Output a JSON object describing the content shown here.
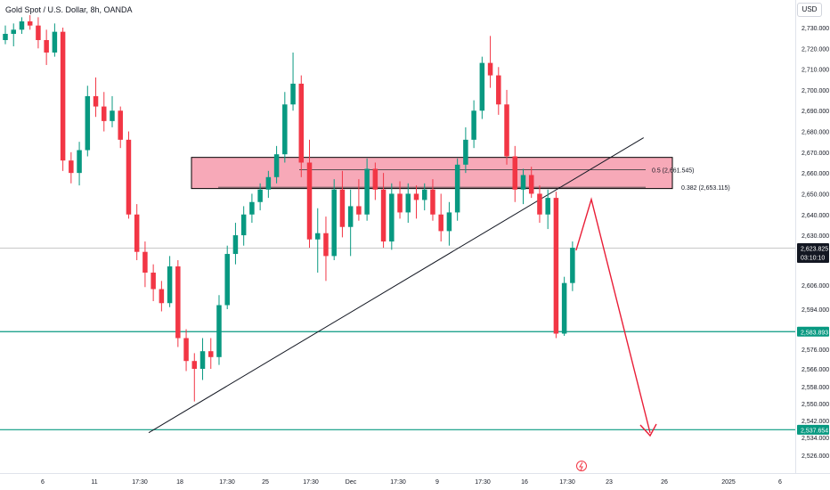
{
  "chart_data": {
    "type": "candlestick",
    "title": "Gold Spot / U.S. Dollar, 8h, OANDA",
    "currency": "USD",
    "y_ticks": [
      2730,
      2720,
      2710,
      2700,
      2690,
      2680,
      2670,
      2660,
      2650,
      2640,
      2630,
      2606,
      2594,
      2576,
      2566,
      2558,
      2550,
      2542,
      2534,
      2526
    ],
    "y_tick_labels": [
      "2,730.000",
      "2,720.000",
      "2,710.000",
      "2,700.000",
      "2,690.000",
      "2,680.000",
      "2,670.000",
      "2,660.000",
      "2,650.000",
      "2,640.000",
      "2,630.000",
      "2,606.000",
      "2,594.000",
      "2,576.000",
      "2,566.000",
      "2,558.000",
      "2,550.000",
      "2,542.000",
      "2,534.000",
      "2,526.000"
    ],
    "x_tick_labels": [
      "6",
      "11",
      "17:30",
      "18",
      "17:30",
      "25",
      "17:30",
      "Dec",
      "17:30",
      "9",
      "17:30",
      "16",
      "17:30",
      "23",
      "26",
      "2025",
      "6"
    ],
    "current_price": {
      "value": 2623.825,
      "label": "2,623.825",
      "countdown": "03:10:10",
      "color": "#131722"
    },
    "horizontal_levels": [
      {
        "value": 2583.893,
        "label": "2,583.893",
        "color": "#089981"
      },
      {
        "value": 2537.654,
        "label": "2,537.654",
        "color": "#089981"
      }
    ],
    "fib_levels": [
      {
        "label": "0.5 (2,661.545)",
        "value": 2661.545
      },
      {
        "label": "0.382 (2,653.115)",
        "value": 2653.115
      }
    ],
    "resistance_zone": {
      "top": 2667.5,
      "bottom": 2652.5,
      "fill": "#f7a9b8",
      "border": "#000000"
    },
    "trendline": {
      "from": {
        "candle": 0,
        "price": 2537.5
      },
      "to": {
        "candle": 64,
        "price": 2677
      }
    },
    "projection_path": [
      {
        "candle": 62.5,
        "price": 2646
      },
      {
        "candle": 72.5,
        "price": 2537
      }
    ],
    "colors": {
      "up": "#089981",
      "down": "#f23645",
      "projection": "#e91e37"
    },
    "candles": [
      [
        2724,
        2731,
        2722,
        2727
      ],
      [
        2727,
        2732,
        2721,
        2729
      ],
      [
        2729,
        2735,
        2727,
        2733
      ],
      [
        2733,
        2736,
        2729,
        2731
      ],
      [
        2731,
        2735,
        2720,
        2724
      ],
      [
        2724,
        2729,
        2712,
        2718
      ],
      [
        2718,
        2732,
        2716,
        2728
      ],
      [
        2728,
        2730,
        2661,
        2666
      ],
      [
        2666,
        2670,
        2655,
        2660
      ],
      [
        2660,
        2675,
        2654,
        2671
      ],
      [
        2671,
        2702,
        2668,
        2697
      ],
      [
        2697,
        2706,
        2687,
        2692
      ],
      [
        2692,
        2699,
        2680,
        2685
      ],
      [
        2685,
        2697,
        2682,
        2690
      ],
      [
        2690,
        2692,
        2672,
        2676
      ],
      [
        2676,
        2680,
        2638,
        2640
      ],
      [
        2640,
        2645,
        2618,
        2622
      ],
      [
        2622,
        2627,
        2605,
        2612
      ],
      [
        2612,
        2616,
        2598,
        2604
      ],
      [
        2604,
        2608,
        2593,
        2597
      ],
      [
        2597,
        2620,
        2595,
        2615
      ],
      [
        2615,
        2618,
        2577,
        2581
      ],
      [
        2581,
        2585,
        2565,
        2570
      ],
      [
        2570,
        2574,
        2551,
        2566
      ],
      [
        2566,
        2581,
        2561,
        2575
      ],
      [
        2575,
        2581,
        2566,
        2572
      ],
      [
        2572,
        2601,
        2568,
        2596
      ],
      [
        2596,
        2625,
        2594,
        2621
      ],
      [
        2621,
        2636,
        2616,
        2630
      ],
      [
        2630,
        2644,
        2625,
        2640
      ],
      [
        2640,
        2650,
        2636,
        2646
      ],
      [
        2646,
        2655,
        2642,
        2652
      ],
      [
        2652,
        2661,
        2648,
        2658
      ],
      [
        2658,
        2673,
        2655,
        2669
      ],
      [
        2669,
        2699,
        2665,
        2693
      ],
      [
        2693,
        2718,
        2690,
        2703
      ],
      [
        2703,
        2707,
        2658,
        2665
      ],
      [
        2665,
        2676,
        2624,
        2628
      ],
      [
        2628,
        2643,
        2612,
        2631
      ],
      [
        2631,
        2639,
        2608,
        2620
      ],
      [
        2620,
        2657,
        2618,
        2652
      ],
      [
        2652,
        2661,
        2629,
        2634
      ],
      [
        2634,
        2652,
        2620,
        2644
      ],
      [
        2644,
        2657,
        2637,
        2640
      ],
      [
        2640,
        2667,
        2637,
        2662
      ],
      [
        2662,
        2665,
        2647,
        2652
      ],
      [
        2652,
        2660,
        2624,
        2627
      ],
      [
        2627,
        2655,
        2623,
        2650
      ],
      [
        2650,
        2656,
        2638,
        2641
      ],
      [
        2641,
        2655,
        2636,
        2650
      ],
      [
        2650,
        2654,
        2638,
        2647
      ],
      [
        2647,
        2655,
        2642,
        2652
      ],
      [
        2652,
        2657,
        2637,
        2640
      ],
      [
        2640,
        2650,
        2627,
        2632
      ],
      [
        2632,
        2646,
        2625,
        2641
      ],
      [
        2641,
        2667,
        2637,
        2664
      ],
      [
        2664,
        2682,
        2660,
        2676
      ],
      [
        2676,
        2695,
        2672,
        2690
      ],
      [
        2690,
        2716,
        2686,
        2713
      ],
      [
        2713,
        2726,
        2701,
        2707
      ],
      [
        2707,
        2711,
        2688,
        2693
      ],
      [
        2693,
        2700,
        2664,
        2668
      ],
      [
        2668,
        2673,
        2646,
        2652
      ],
      [
        2652,
        2662,
        2645,
        2659
      ],
      [
        2659,
        2663,
        2648,
        2650
      ],
      [
        2650,
        2654,
        2636,
        2640
      ],
      [
        2640,
        2652,
        2633,
        2648
      ],
      [
        2648,
        2651,
        2581,
        2583
      ],
      [
        2583,
        2610,
        2582,
        2607
      ],
      [
        2607,
        2627,
        2603,
        2624
      ]
    ]
  }
}
